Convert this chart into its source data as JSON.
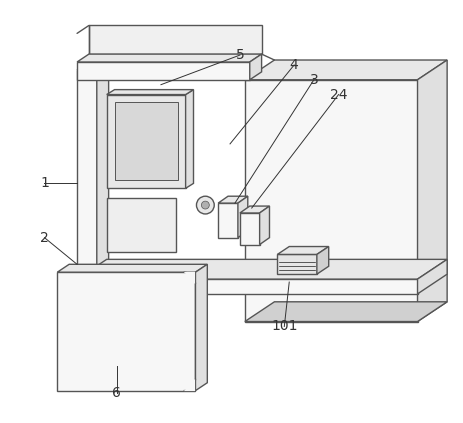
{
  "bg_color": "#ffffff",
  "line_color": "#555555",
  "lw": 1.0,
  "tlw": 0.7,
  "fig_width": 4.63,
  "fig_height": 4.23,
  "dpi": 100,
  "label_fontsize": 10,
  "ann_color": "#333333",
  "ann_lw": 0.7,
  "face_front": "#f7f7f7",
  "face_top": "#e8e8e8",
  "face_side": "#e0e0e0",
  "face_dark": "#d0d0d0"
}
